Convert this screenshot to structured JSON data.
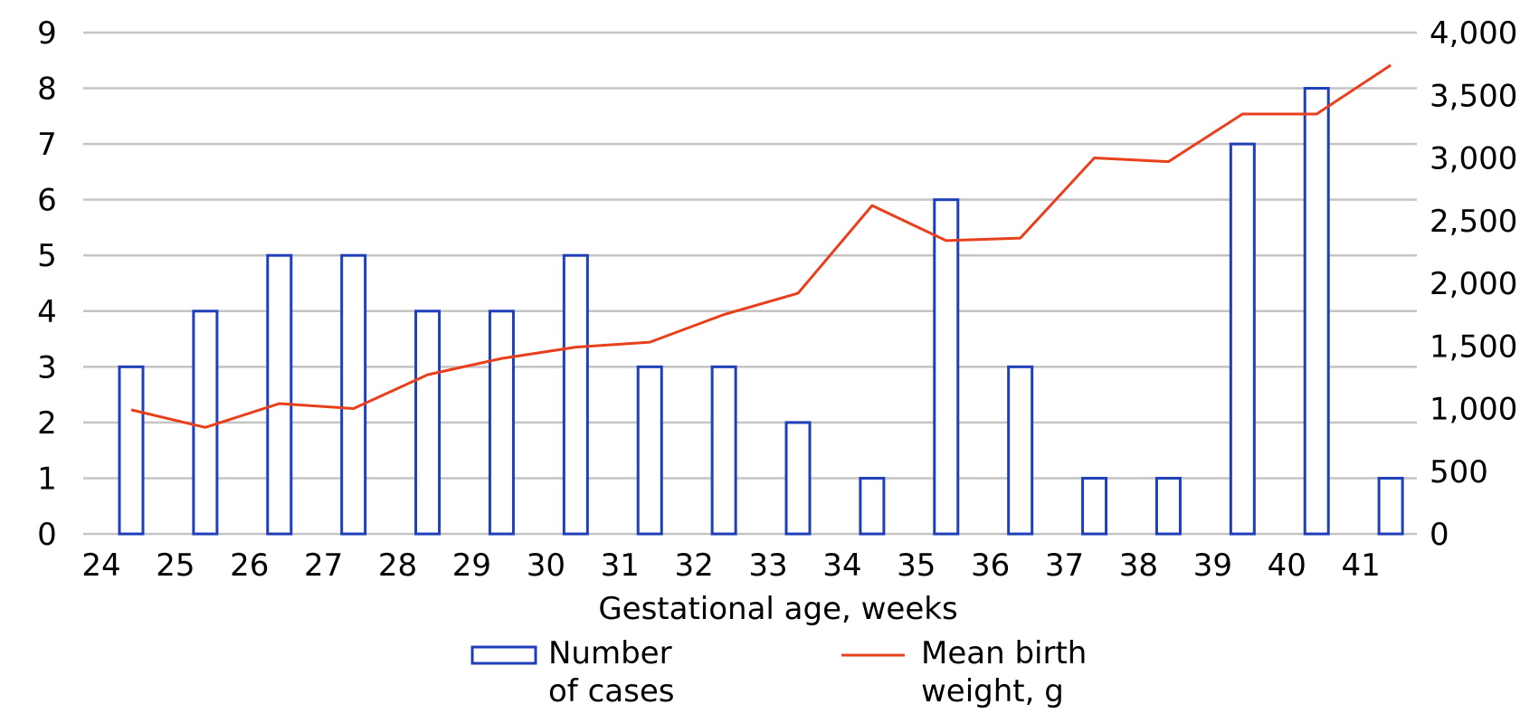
{
  "chart_data": {
    "type": "bar",
    "xlabel": "Gestational age, weeks",
    "categories": [
      "24",
      "25",
      "26",
      "27",
      "28",
      "29",
      "30",
      "31",
      "32",
      "33",
      "34",
      "35",
      "36",
      "37",
      "38",
      "39",
      "40",
      "41"
    ],
    "y_left": {
      "ticks": [
        "0",
        "1",
        "2",
        "3",
        "4",
        "5",
        "6",
        "7",
        "8",
        "9"
      ],
      "ylim": [
        0,
        9
      ]
    },
    "y_right": {
      "ticks": [
        "0",
        "500",
        "1,000",
        "1,500",
        "2,000",
        "2,500",
        "3,000",
        "3,500",
        "4,000"
      ],
      "ylim": [
        0,
        4000
      ]
    },
    "grid": true,
    "legend_position": "bottom",
    "series": [
      {
        "name": "Number of cases",
        "name_lines": [
          "Number",
          "of cases"
        ],
        "type": "bar",
        "axis": "left",
        "color": "#1f3fb8",
        "values": [
          3,
          4,
          5,
          5,
          4,
          4,
          5,
          3,
          3,
          2,
          1,
          6,
          3,
          1,
          1,
          7,
          8,
          1
        ]
      },
      {
        "name": "Mean birth weight, g",
        "name_lines": [
          "Mean birth",
          "weight, g"
        ],
        "type": "line",
        "axis": "right",
        "color": "#e8401c",
        "values": [
          990,
          850,
          1040,
          1000,
          1270,
          1400,
          1490,
          1530,
          1750,
          1920,
          2620,
          2340,
          2360,
          3000,
          2970,
          3350,
          3350,
          3740
        ]
      }
    ]
  }
}
